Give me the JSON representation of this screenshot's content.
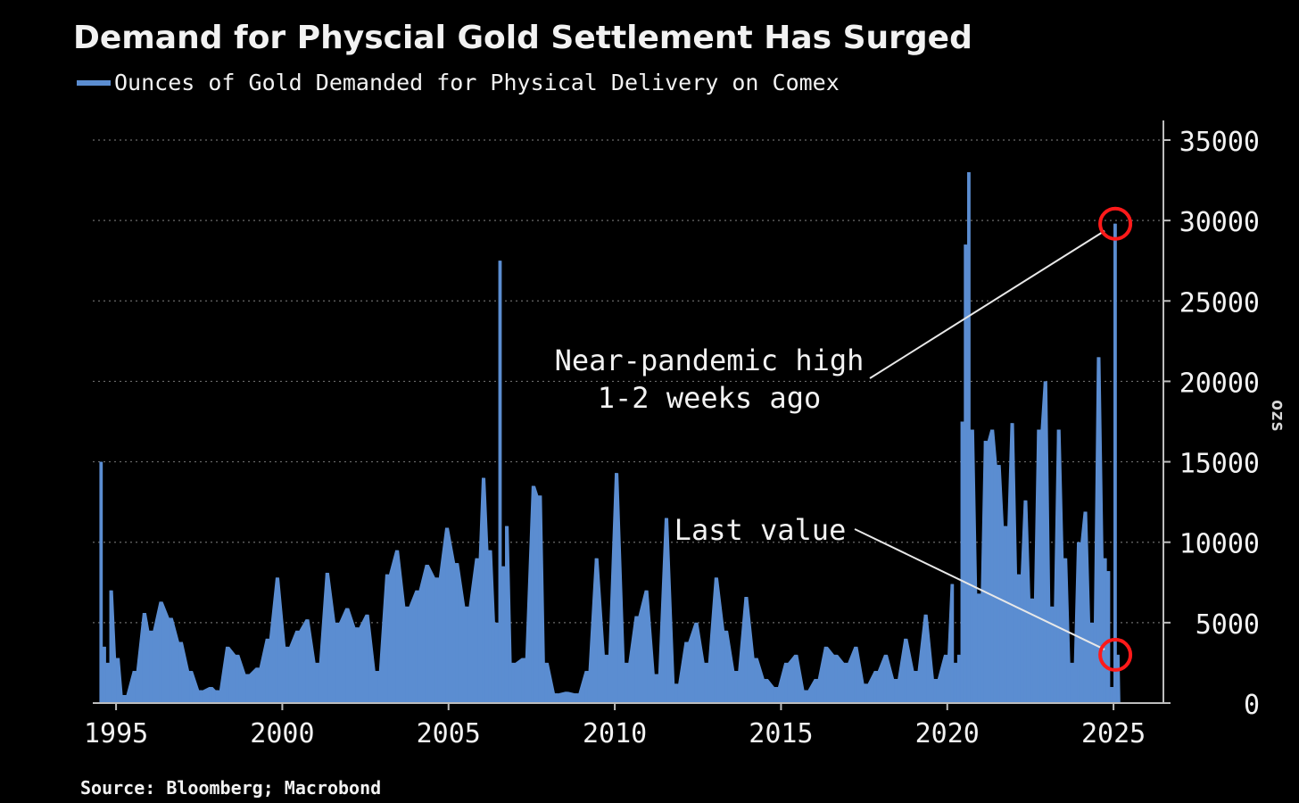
{
  "header": {
    "title": "Demand for Physcial Gold Settlement Has Surged",
    "legend_label": "Ounces of Gold Demanded for Physical Delivery on Comex"
  },
  "footer": {
    "source": "Source: Bloomberg; Macrobond"
  },
  "colors": {
    "background": "#000000",
    "bar": "#5b8dd1",
    "grid": "#6a6a6a",
    "text": "#f2f2f2",
    "annotation_line": "#e8e8e8",
    "highlight_circle": "#ff1a1a"
  },
  "chart_data": {
    "type": "area",
    "title": "Demand for Physcial Gold Settlement Has Surged",
    "series": [
      {
        "name": "Ounces of Gold Demanded for Physical Delivery on Comex",
        "x": [
          1994.5,
          1994.6,
          1994.7,
          1994.8,
          1995.0,
          1995.2,
          1995.5,
          1995.8,
          1996.0,
          1996.3,
          1996.6,
          1996.9,
          1997.2,
          1997.5,
          1997.8,
          1998.0,
          1998.3,
          1998.6,
          1998.9,
          1999.2,
          1999.5,
          1999.8,
          2000.1,
          2000.4,
          2000.7,
          2001.0,
          2001.3,
          2001.6,
          2001.9,
          2002.2,
          2002.5,
          2002.8,
          2003.1,
          2003.4,
          2003.7,
          2004.0,
          2004.3,
          2004.6,
          2004.9,
          2005.2,
          2005.5,
          2005.8,
          2006.0,
          2006.2,
          2006.4,
          2006.5,
          2006.6,
          2006.7,
          2006.9,
          2007.2,
          2007.5,
          2007.7,
          2007.9,
          2008.2,
          2008.5,
          2008.8,
          2009.1,
          2009.4,
          2009.7,
          2010.0,
          2010.3,
          2010.6,
          2010.9,
          2011.2,
          2011.5,
          2011.8,
          2012.1,
          2012.4,
          2012.7,
          2013.0,
          2013.3,
          2013.6,
          2013.9,
          2014.2,
          2014.5,
          2014.8,
          2015.1,
          2015.4,
          2015.7,
          2016.0,
          2016.3,
          2016.6,
          2016.9,
          2017.2,
          2017.5,
          2017.8,
          2018.1,
          2018.4,
          2018.7,
          2019.0,
          2019.3,
          2019.6,
          2019.9,
          2020.1,
          2020.2,
          2020.3,
          2020.4,
          2020.5,
          2020.6,
          2020.7,
          2020.9,
          2021.1,
          2021.3,
          2021.5,
          2021.7,
          2021.9,
          2022.1,
          2022.3,
          2022.5,
          2022.7,
          2022.9,
          2023.1,
          2023.3,
          2023.5,
          2023.7,
          2023.9,
          2024.1,
          2024.3,
          2024.5,
          2024.7,
          2024.8,
          2024.9,
          2025.0,
          2025.1
        ],
        "y": [
          15000,
          3500,
          2500,
          7000,
          2800,
          500,
          2000,
          5600,
          4500,
          6300,
          5300,
          3800,
          2000,
          800,
          1000,
          800,
          3500,
          3000,
          1800,
          2200,
          4000,
          7800,
          3500,
          4500,
          5200,
          2500,
          8100,
          5000,
          5900,
          4700,
          5500,
          2000,
          8000,
          9500,
          6000,
          7000,
          8600,
          7800,
          10900,
          8700,
          6000,
          9000,
          14000,
          9500,
          5000,
          27500,
          8500,
          11000,
          2500,
          2800,
          13500,
          12900,
          2500,
          600,
          700,
          600,
          2000,
          9000,
          3000,
          14300,
          2500,
          5400,
          7000,
          1800,
          11500,
          1200,
          3800,
          5000,
          2500,
          7800,
          4500,
          2000,
          6600,
          2800,
          1500,
          1000,
          2500,
          3000,
          800,
          1500,
          3500,
          3000,
          2500,
          3500,
          1200,
          2000,
          3000,
          1500,
          4000,
          2000,
          5500,
          1500,
          3000,
          7400,
          2500,
          3000,
          17500,
          28500,
          33000,
          17000,
          6800,
          16300,
          17000,
          14800,
          11000,
          17400,
          8000,
          12600,
          6500,
          17000,
          20000,
          6000,
          17000,
          9000,
          2500,
          10000,
          11900,
          5000,
          21500,
          9000,
          8200,
          1000,
          29800,
          3000
        ]
      }
    ],
    "xlim": [
      1994.3,
      2026.5
    ],
    "ylim": [
      0,
      35000
    ],
    "x_ticks": [
      1995,
      2000,
      2005,
      2010,
      2015,
      2020,
      2025
    ],
    "y_ticks": [
      0,
      5000,
      10000,
      15000,
      20000,
      25000,
      30000,
      35000
    ],
    "ylabel": "ozs",
    "y_axis_side": "right",
    "grid": true,
    "grid_style": "dotted",
    "legend_position": "top-left",
    "annotations": [
      {
        "text_lines": [
          "Near-pandemic high",
          "1-2 weeks ago"
        ],
        "target": {
          "x": 2025.0,
          "y": 29800
        }
      },
      {
        "text_lines": [
          "Last value"
        ],
        "target": {
          "x": 2025.0,
          "y": 3000
        }
      }
    ]
  }
}
